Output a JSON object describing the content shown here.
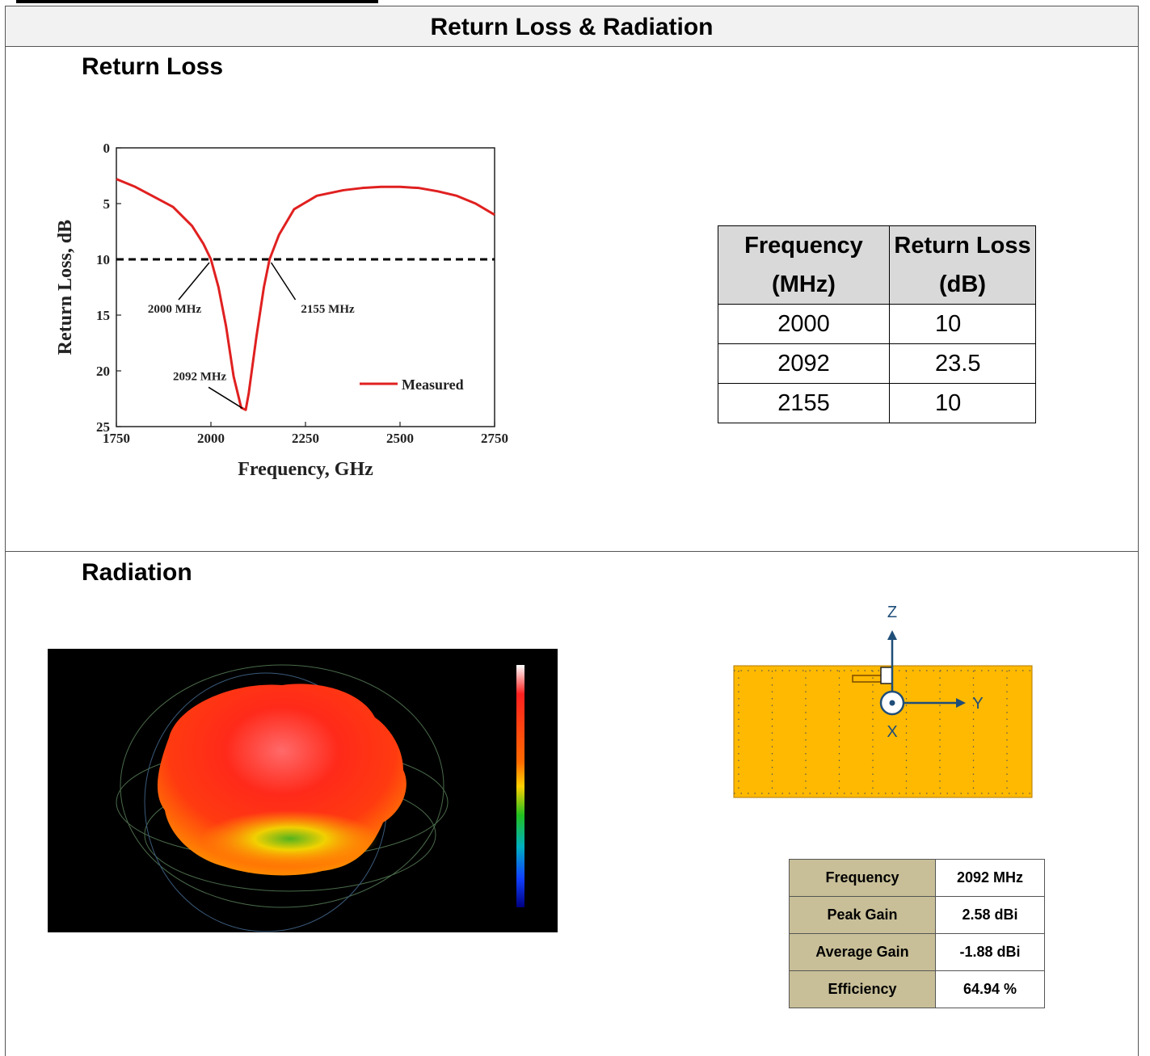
{
  "header": {
    "title": "Return Loss & Radiation"
  },
  "return_loss_section": {
    "title": "Return Loss"
  },
  "radiation_section": {
    "title": "Radiation"
  },
  "chart_data": {
    "type": "line",
    "xlabel": "Frequency, GHz",
    "ylabel": "Return Loss, dB",
    "xlim": [
      1750,
      2750
    ],
    "ylim": [
      0,
      25
    ],
    "y_inverted": true,
    "x_ticks": [
      "1750",
      "2000",
      "2250",
      "2500",
      "2750"
    ],
    "y_ticks": [
      "0",
      "5",
      "10",
      "15",
      "20",
      "25"
    ],
    "threshold": 10,
    "series": [
      {
        "name": "Measured",
        "color": "#e02020",
        "x": [
          1750,
          1800,
          1850,
          1900,
          1950,
          1980,
          2000,
          2020,
          2040,
          2060,
          2080,
          2092,
          2100,
          2120,
          2140,
          2155,
          2180,
          2220,
          2280,
          2350,
          2400,
          2450,
          2500,
          2550,
          2600,
          2650,
          2700,
          2750
        ],
        "y": [
          2.8,
          3.5,
          4.4,
          5.3,
          7.0,
          8.6,
          10.0,
          12.5,
          16.0,
          20.5,
          23.3,
          23.5,
          22.0,
          17.0,
          12.5,
          10.0,
          7.8,
          5.5,
          4.3,
          3.8,
          3.6,
          3.5,
          3.5,
          3.6,
          3.9,
          4.3,
          5.0,
          6.0
        ]
      }
    ],
    "annotations": [
      {
        "text": "2000 MHz",
        "x": 2000,
        "y": 10
      },
      {
        "text": "2155 MHz",
        "x": 2155,
        "y": 10
      },
      {
        "text": "2092 MHz",
        "x": 2092,
        "y": 23.5
      }
    ],
    "legend": {
      "label": "Measured",
      "position": "bottom-right"
    }
  },
  "rl_table": {
    "headers": [
      "Frequency (MHz)",
      "Return Loss (dB)"
    ],
    "header_lines": [
      [
        "Frequency",
        "(MHz)"
      ],
      [
        "Return Loss",
        "(dB)"
      ]
    ],
    "rows": [
      [
        "2000",
        "10"
      ],
      [
        "2092",
        "23.5"
      ],
      [
        "2155",
        "10"
      ]
    ]
  },
  "antenna": {
    "axes": [
      "Z",
      "Y",
      "X"
    ],
    "board_color": "#ffb900",
    "axis_color": "#1f4e79"
  },
  "gain_table": {
    "rows": [
      {
        "label": "Frequency",
        "value": "2092 MHz"
      },
      {
        "label": "Peak Gain",
        "value": "2.58 dBi"
      },
      {
        "label": "Average Gain",
        "value": "-1.88 dBi"
      },
      {
        "label": "Efficiency",
        "value": "64.94 %"
      }
    ]
  }
}
